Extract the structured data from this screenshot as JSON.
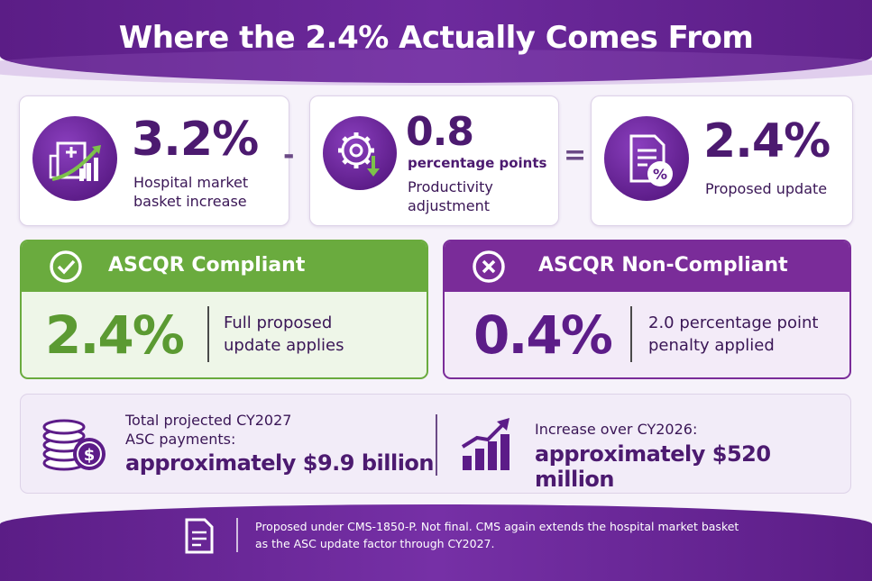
{
  "title": "Where the 2.4% Actually Comes From",
  "formula": {
    "market_basket": {
      "value": "3.2%",
      "label_line1": "Hospital market",
      "label_line2": "basket increase",
      "icon": "hospital-growth-icon"
    },
    "minus": "-",
    "productivity": {
      "value": "0.8",
      "unit": "percentage points",
      "label_line1": "Productivity",
      "label_line2": "adjustment",
      "icon": "gear-down-arrow-icon"
    },
    "equals": "=",
    "proposed": {
      "value": "2.4%",
      "label": "Proposed update",
      "icon": "percent-document-icon"
    }
  },
  "compliant": {
    "title": "ASCQR Compliant",
    "value": "2.4%",
    "text_line1": "Full proposed",
    "text_line2": "update applies",
    "color": "#6aab3e",
    "icon": "check-circle-icon"
  },
  "non_compliant": {
    "title": "ASCQR Non-Compliant",
    "value": "0.4%",
    "text_line1": "2.0 percentage point",
    "text_line2": "penalty applied",
    "color": "#7a2c99",
    "icon": "x-circle-icon"
  },
  "payments": {
    "total_label_line1": "Total projected CY2027",
    "total_label_line2": "ASC payments:",
    "total_value": "approximately $9.9 billion",
    "total_icon": "coin-stack-icon",
    "increase_label": "Increase over CY2026:",
    "increase_value": "approximately $520 million",
    "increase_icon": "bar-chart-up-icon"
  },
  "footer": {
    "note_line1": "Proposed under CMS-1850-P. Not final. CMS again extends the hospital market basket",
    "note_line2": "as the ASC update factor through CY2027.",
    "icon": "document-icon"
  }
}
